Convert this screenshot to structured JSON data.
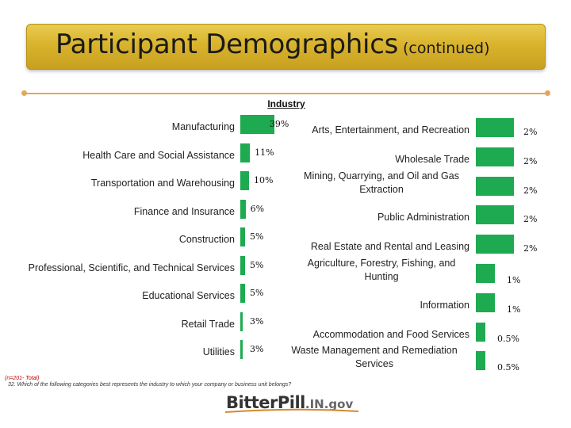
{
  "header": {
    "title": "Participant Demographics",
    "subtitle": "(continued)"
  },
  "chart_data": {
    "type": "bar",
    "orientation": "horizontal",
    "title": "Industry",
    "unit": "%",
    "left_panel": {
      "categories": [
        "Manufacturing",
        "Health Care and Social Assistance",
        "Transportation and Warehousing",
        "Finance and Insurance",
        "Construction",
        "Professional, Scientific, and Technical Services",
        "Educational Services",
        "Retail Trade",
        "Utilities"
      ],
      "values": [
        39,
        11,
        10,
        6,
        5,
        5,
        5,
        3,
        3
      ],
      "labels": [
        "39%",
        "11%",
        "10%",
        "6%",
        "5%",
        "5%",
        "5%",
        "3%",
        "3%"
      ]
    },
    "right_panel": {
      "categories": [
        "Arts, Entertainment, and Recreation",
        "Wholesale Trade",
        "Mining, Quarrying, and Oil and Gas Extraction",
        "Public Administration",
        "Real Estate and Rental and Leasing",
        "Agriculture, Forestry, Fishing, and Hunting",
        "Information",
        "Accommodation and Food Services",
        "Waste Management and Remediation Services"
      ],
      "values": [
        2,
        2,
        2,
        2,
        2,
        1,
        1,
        0.5,
        0.5
      ],
      "labels": [
        "2%",
        "2%",
        "2%",
        "2%",
        "2%",
        "1%",
        "1%",
        "0.5%",
        "0.5%"
      ]
    },
    "bar_color": "#1eaa50"
  },
  "footnote": {
    "sample": "(n=201- Total)",
    "question": "32. Which of the following categories best represents the industry to which your company or business unit belongs?"
  },
  "logo": {
    "main": "BitterPill",
    "suffix": ".IN.gov"
  }
}
